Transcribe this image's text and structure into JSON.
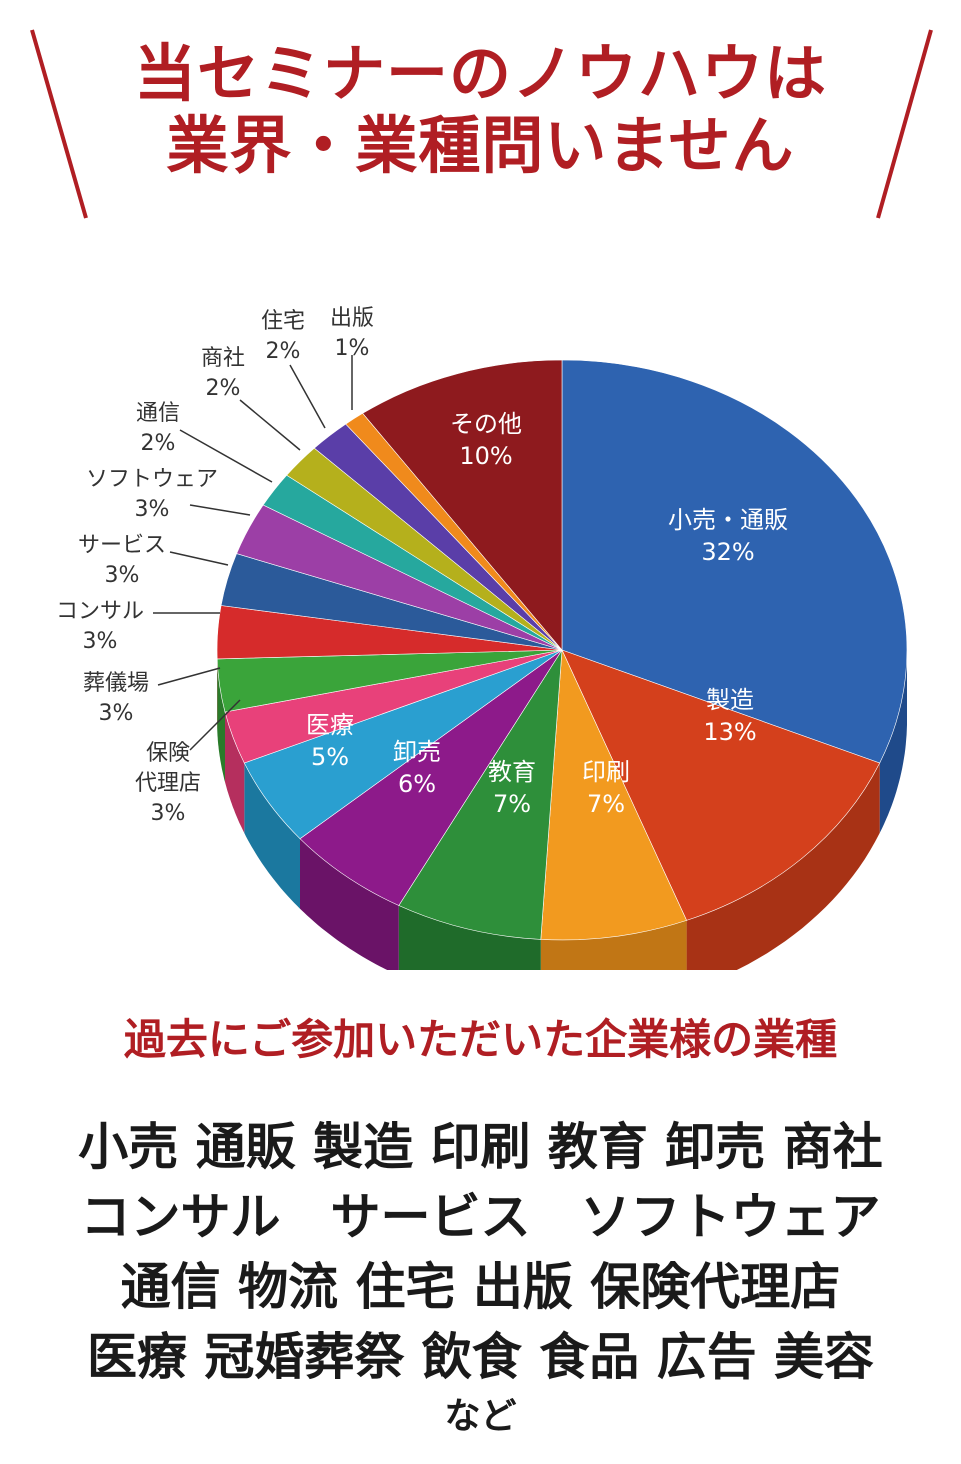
{
  "header": {
    "title_line1": "当セミナーのノウハウは",
    "title_line2": "業界・業種問いません"
  },
  "chart_data": {
    "type": "pie",
    "title": "",
    "slices": [
      {
        "label": "小売・通販",
        "value": 32,
        "pct": "32%",
        "color": "#2e63b0",
        "side": "#1f4a8a"
      },
      {
        "label": "製造",
        "value": 13,
        "pct": "13%",
        "color": "#d4401c",
        "side": "#a83215"
      },
      {
        "label": "印刷",
        "value": 7,
        "pct": "7%",
        "color": "#f29a1f",
        "side": "#c17615"
      },
      {
        "label": "教育",
        "value": 7,
        "pct": "7%",
        "color": "#2e8f3a",
        "side": "#1f6b2a"
      },
      {
        "label": "卸売",
        "value": 6,
        "pct": "6%",
        "color": "#8d1a8a",
        "side": "#6a1367"
      },
      {
        "label": "医療",
        "value": 5,
        "pct": "5%",
        "color": "#2a9fd0",
        "side": "#1b789f"
      },
      {
        "label": "保険代理店",
        "value": 3,
        "pct": "3%",
        "color": "#e8417a",
        "side": "#b52f5e"
      },
      {
        "label": "葬儀場",
        "value": 3,
        "pct": "3%",
        "color": "#3aa43a",
        "side": "#2a7b2a"
      },
      {
        "label": "コンサル",
        "value": 3,
        "pct": "3%",
        "color": "#d62b2b",
        "side": "#a51e1e"
      },
      {
        "label": "サービス",
        "value": 3,
        "pct": "3%",
        "color": "#2b5a9a",
        "side": "#1e4273"
      },
      {
        "label": "ソフトウェア",
        "value": 3,
        "pct": "3%",
        "color": "#9c3fa6",
        "side": "#762f7e"
      },
      {
        "label": "通信",
        "value": 2,
        "pct": "2%",
        "color": "#26a89e",
        "side": "#1b7d75"
      },
      {
        "label": "商社",
        "value": 2,
        "pct": "2%",
        "color": "#b5b01c",
        "side": "#8a8614"
      },
      {
        "label": "住宅",
        "value": 2,
        "pct": "2%",
        "color": "#5a3ea8",
        "side": "#432e7e"
      },
      {
        "label": "出版",
        "value": 1,
        "pct": "1%",
        "color": "#f08a1c",
        "side": "#bf6c14"
      },
      {
        "label": "その他",
        "value": 10,
        "pct": "10%",
        "color": "#8e1a1e",
        "side": "#6b1216"
      }
    ],
    "inside_labels": [
      {
        "lines": [
          "小売・通販",
          "32%"
        ]
      },
      {
        "lines": [
          "製造",
          "13%"
        ]
      },
      {
        "lines": [
          "印刷",
          "7%"
        ]
      },
      {
        "lines": [
          "教育",
          "7%"
        ]
      },
      {
        "lines": [
          "卸売",
          "6%"
        ]
      },
      {
        "lines": [
          "医療",
          "5%"
        ]
      },
      {
        "lines": [
          "その他",
          "10%"
        ]
      }
    ],
    "callouts": [
      {
        "lines": [
          "出版",
          "1%"
        ]
      },
      {
        "lines": [
          "住宅",
          "2%"
        ]
      },
      {
        "lines": [
          "商社",
          "2%"
        ]
      },
      {
        "lines": [
          "通信",
          "2%"
        ]
      },
      {
        "lines": [
          "ソフトウェア",
          "3%"
        ]
      },
      {
        "lines": [
          "サービス",
          "3%"
        ]
      },
      {
        "lines": [
          "コンサル",
          "3%"
        ]
      },
      {
        "lines": [
          "葬儀場",
          "3%"
        ]
      },
      {
        "lines": [
          "保険",
          "代理店",
          "3%"
        ]
      }
    ]
  },
  "past_industries": {
    "subtitle": "過去にご参加いただいた企業様の業種",
    "line1": "小売 通販 製造 印刷 教育 卸売 商社",
    "line2": "コンサル　サービス　ソフトウェア",
    "line3": "通信 物流 住宅 出版 保険代理店",
    "line4": "医療 冠婚葬祭 飲食 食品 広告 美容",
    "line5": "など"
  }
}
